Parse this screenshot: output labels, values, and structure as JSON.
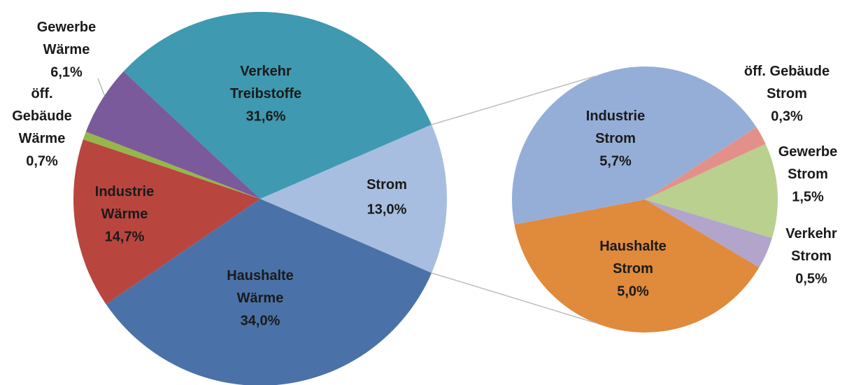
{
  "chart_data": {
    "type": "pie",
    "categories": [
      "Strom",
      "Haushalte\nWärme",
      "Industrie\nWärme",
      "öff.\nGebäude\nWärme",
      "Gewerbe\nWärme",
      "Verkehr\nTreibstoffe"
    ],
    "values": [
      13.0,
      34.0,
      14.7,
      0.7,
      6.1,
      31.6
    ],
    "value_labels": [
      "13,0%",
      "34,0%",
      "14,7%",
      "0,7%",
      "6,1%",
      "31,6%"
    ],
    "colors": [
      "#a7bee0",
      "#4a72a8",
      "#b8463f",
      "#97b649",
      "#7a5a9b",
      "#3f99b0"
    ],
    "breakdown": {
      "categories": [
        "öff. Gebäude\nStrom",
        "Gewerbe\nStrom",
        "Verkehr\nStrom",
        "Haushalte\nStrom",
        "Industrie\nStrom"
      ],
      "values": [
        0.3,
        1.5,
        0.5,
        5.0,
        5.7
      ],
      "value_labels": [
        "0,3%",
        "1,5%",
        "0,5%",
        "5,0%",
        "5,7%"
      ],
      "colors": [
        "#e4908a",
        "#b9d08f",
        "#b1a5cc",
        "#e08a3c",
        "#95aed8"
      ]
    }
  }
}
